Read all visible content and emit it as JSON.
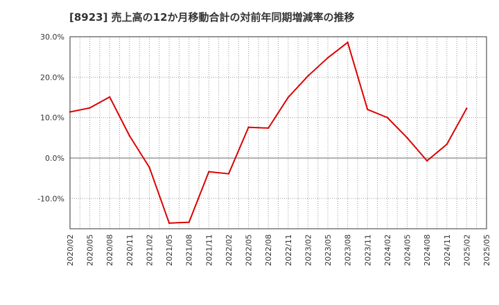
{
  "chart_data": {
    "type": "line",
    "title": "[8923]  売上高の12か月移動合計の対前年同期増減率の推移",
    "xlabel": "",
    "ylabel": "",
    "ylim": [
      -17.5,
      30
    ],
    "yticks": [
      -10,
      0,
      10,
      20,
      30
    ],
    "ytick_labels": [
      "-10.0%",
      "0.0%",
      "10.0%",
      "20.0%",
      "30.0%"
    ],
    "xtick_labels": [
      "2020/02",
      "2020/05",
      "2020/08",
      "2020/11",
      "2021/02",
      "2021/05",
      "2021/08",
      "2021/11",
      "2022/02",
      "2022/05",
      "2022/08",
      "2022/11",
      "2023/02",
      "2023/05",
      "2023/08",
      "2023/11",
      "2024/02",
      "2024/05",
      "2024/08",
      "2024/11",
      "2025/02",
      "2025/05"
    ],
    "grid": true,
    "series": [
      {
        "name": "対前年同期増減率",
        "color": "#dd0000",
        "x": [
          "2020/02",
          "2020/05",
          "2020/08",
          "2020/11",
          "2021/02",
          "2021/05",
          "2021/08",
          "2021/11",
          "2022/02",
          "2022/05",
          "2022/08",
          "2022/11",
          "2023/02",
          "2023/05",
          "2023/08",
          "2023/11",
          "2024/02",
          "2024/05",
          "2024/08",
          "2024/11",
          "2025/02"
        ],
        "values": [
          11.4,
          12.4,
          15.1,
          5.5,
          -2.3,
          -16.1,
          -15.9,
          -3.4,
          -3.9,
          7.6,
          7.4,
          15.0,
          20.3,
          24.8,
          28.6,
          12.0,
          10.0,
          5.0,
          -0.7,
          3.4,
          12.3
        ]
      }
    ]
  }
}
